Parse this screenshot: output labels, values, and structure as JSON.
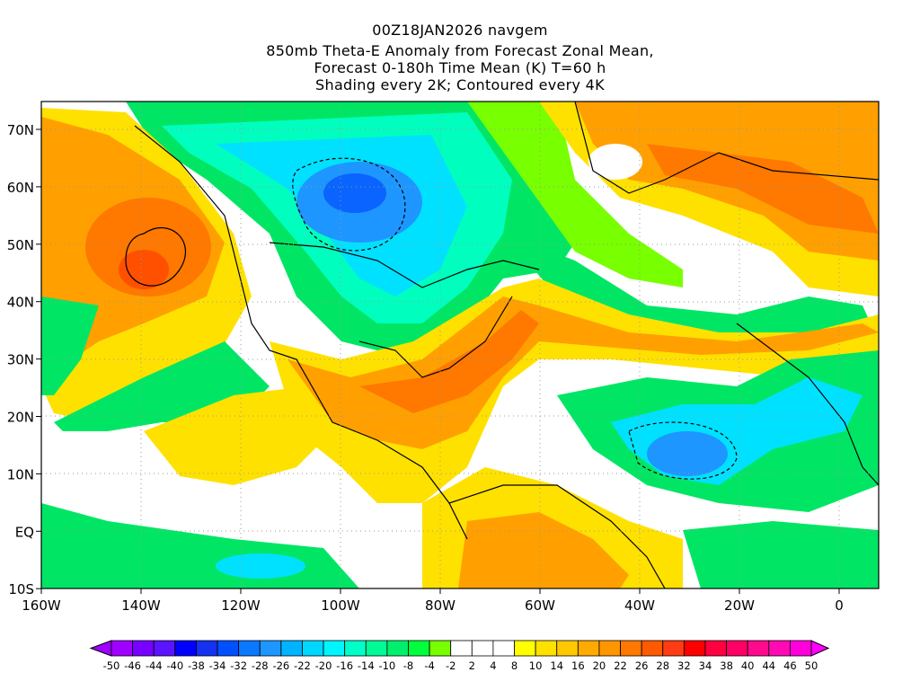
{
  "title": {
    "line1": "00Z18JAN2026 navgem",
    "line2": "850mb Theta-E Anomaly from Forecast Zonal Mean,",
    "line3": "Forecast 0-180h Time Mean (K) T=60 h",
    "line4": "Shading every 2K; Contoured every 4K"
  },
  "axes": {
    "lon_ticks": [
      "160W",
      "140W",
      "120W",
      "100W",
      "80W",
      "60W",
      "40W",
      "20W",
      "0"
    ],
    "lat_ticks": [
      "70N",
      "60N",
      "50N",
      "40N",
      "30N",
      "20N",
      "10N",
      "EQ",
      "10S"
    ]
  },
  "colorbar": {
    "labels": [
      "-50",
      "-46",
      "-44",
      "-40",
      "-38",
      "-34",
      "-32",
      "-28",
      "-26",
      "-22",
      "-20",
      "-16",
      "-14",
      "-10",
      "-8",
      "-4",
      "-2",
      "2",
      "4",
      "8",
      "10",
      "14",
      "16",
      "20",
      "22",
      "26",
      "28",
      "32",
      "34",
      "38",
      "40",
      "44",
      "46",
      "50"
    ],
    "colors": [
      "#a000ff",
      "#7800ff",
      "#5a14ff",
      "#0000ff",
      "#1432f0",
      "#0050ff",
      "#0a78ff",
      "#1e96ff",
      "#00b4ff",
      "#00d7ff",
      "#00f5ff",
      "#00ffc8",
      "#00fa96",
      "#00f06e",
      "#00ff3c",
      "#78ff00",
      "#ffffff",
      "#ffffff",
      "#ffffff",
      "#ffff00",
      "#ffe100",
      "#ffc800",
      "#ffaa00",
      "#ff9600",
      "#ff7800",
      "#ff5a00",
      "#ff3c14",
      "#ff0000",
      "#ff0040",
      "#ff0064",
      "#ff0a8c",
      "#ff0ab4",
      "#ff00dc"
    ],
    "under_color": "#a000ff",
    "over_color": "#ff00ff"
  },
  "palette": {
    "blue": "#0a64ff",
    "cyan": "#00e1ff",
    "teal": "#00ffbe",
    "green": "#00e664",
    "lime": "#78ff00",
    "yellow": "#ffff00",
    "gold": "#ffd200",
    "orange": "#ffa000",
    "darkorange": "#ff7800",
    "red": "#ff5000"
  }
}
